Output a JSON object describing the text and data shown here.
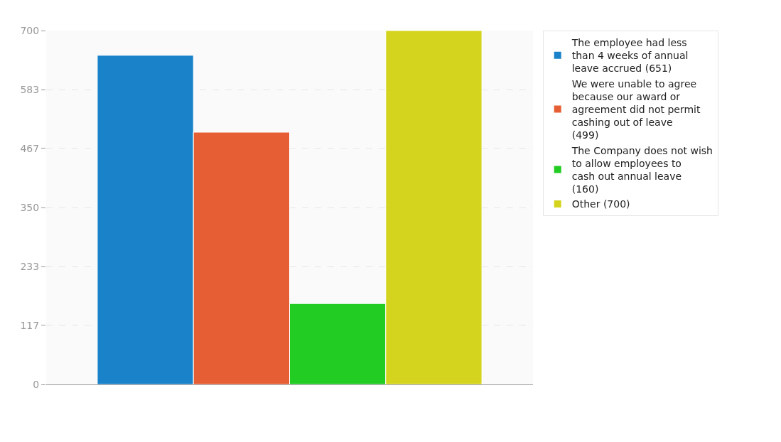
{
  "chart_data": {
    "type": "bar",
    "categories": [
      null
    ],
    "series": [
      {
        "name": "The employee had less than 4 weeks of annual leave accrued (651)",
        "color": "#1a82c8",
        "values": [
          651
        ]
      },
      {
        "name": "We were unable to agree because our award or agreement did not permit cashing out of leave (499)",
        "color": "#e65f34",
        "values": [
          499
        ]
      },
      {
        "name": "The Company does not wish to allow employees to cash out annual leave (160)",
        "color": "#22cc22",
        "values": [
          160
        ]
      },
      {
        "name": "Other (700)",
        "color": "#d4d41e",
        "values": [
          700
        ]
      }
    ],
    "ylim": [
      0,
      700
    ],
    "yticks": [
      0,
      117,
      233,
      350,
      467,
      583,
      700
    ],
    "grid": true,
    "legend": "top right"
  }
}
